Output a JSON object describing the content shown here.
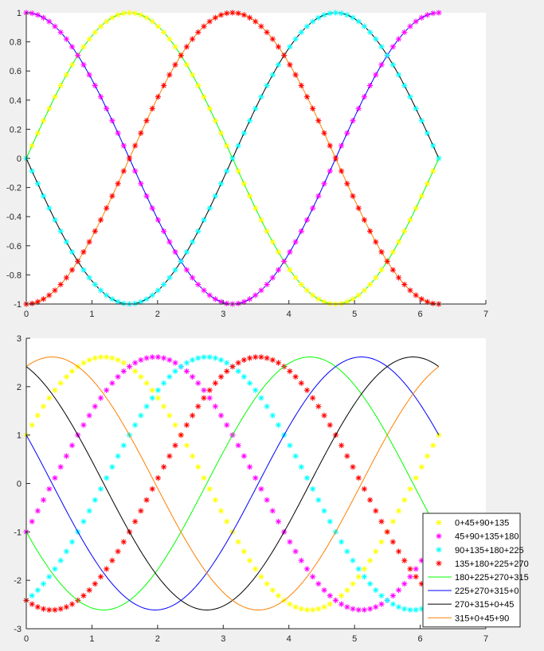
{
  "figure": {
    "background": "#f0f0f0"
  },
  "chart_data": [
    {
      "type": "line",
      "xlim": [
        0,
        7
      ],
      "ylim": [
        -1,
        1
      ],
      "xticks": [
        "0",
        "1",
        "2",
        "3",
        "4",
        "5",
        "6",
        "7"
      ],
      "yticks": [
        "-1",
        "-0.8",
        "-0.6",
        "-0.4",
        "-0.2",
        "0",
        "0.2",
        "0.4",
        "0.6",
        "0.8",
        "1"
      ],
      "x_range": [
        0,
        6.2832
      ],
      "grid": false,
      "series": [
        {
          "style": "line",
          "color": "#00ff00",
          "function": "sin(x)"
        },
        {
          "style": "line",
          "color": "#0000ff",
          "function": "cos(x)"
        },
        {
          "style": "line",
          "color": "#000000",
          "function": "-sin(x)"
        },
        {
          "style": "line",
          "color": "#ff8000",
          "function": "-cos(x)"
        },
        {
          "style": "markers",
          "marker": "*",
          "color": "#ffff00",
          "function": "sin(x)"
        },
        {
          "style": "markers",
          "marker": "*",
          "color": "#ff00ff",
          "function": "cos(x)"
        },
        {
          "style": "markers",
          "marker": "*",
          "color": "#00ffff",
          "function": "-sin(x)"
        },
        {
          "style": "markers",
          "marker": "*",
          "color": "#ff0000",
          "function": "-cos(x)"
        }
      ]
    },
    {
      "type": "line",
      "xlim": [
        0,
        7
      ],
      "ylim": [
        -3,
        3
      ],
      "xticks": [
        "0",
        "1",
        "2",
        "3",
        "4",
        "5",
        "6",
        "7"
      ],
      "yticks": [
        "-3",
        "-2",
        "-1",
        "0",
        "1",
        "2",
        "3"
      ],
      "x_range": [
        0,
        6.2832
      ],
      "grid": false,
      "legend_location": "bottom-right",
      "amplitude": 2.6131,
      "series": [
        {
          "name": "0+45+90+135",
          "style": "markers",
          "marker": "*",
          "color": "#ffff00",
          "phase_deg": 67.5
        },
        {
          "name": "45+90+135+180",
          "style": "markers",
          "marker": "*",
          "color": "#ff00ff",
          "phase_deg": 112.5
        },
        {
          "name": "90+135+180+225",
          "style": "markers",
          "marker": "*",
          "color": "#00ffff",
          "phase_deg": 157.5
        },
        {
          "name": "135+180+225+270",
          "style": "markers",
          "marker": "*",
          "color": "#ff0000",
          "phase_deg": 202.5
        },
        {
          "name": "180+225+270+315",
          "style": "line",
          "color": "#00ff00",
          "phase_deg": 247.5
        },
        {
          "name": "225+270+315+0",
          "style": "line",
          "color": "#0000ff",
          "phase_deg": 292.5
        },
        {
          "name": "270+315+0+45",
          "style": "line",
          "color": "#000000",
          "phase_deg": 337.5
        },
        {
          "name": "315+0+45+90",
          "style": "line",
          "color": "#ff8000",
          "phase_deg": 22.5
        }
      ]
    }
  ]
}
